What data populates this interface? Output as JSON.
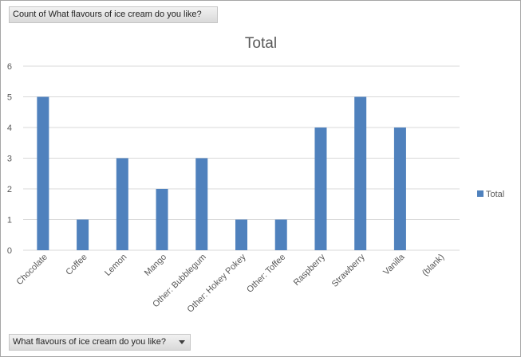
{
  "pivot": {
    "value_field": "Count of What flavours of ice cream do you like?",
    "axis_field": "What flavours of ice cream do you like?"
  },
  "colors": {
    "bar": "#4f81bd",
    "grid": "#d9d9d9",
    "text": "#595959"
  },
  "chart_data": {
    "type": "bar",
    "title": "Total",
    "categories": [
      "Chocolate",
      "Coffee",
      "Lemon",
      "Mango",
      "Other: Bubblegum",
      "Other: Hokey Pokey",
      "Other: Toffee",
      "Raspberry",
      "Strawberry",
      "Vanilla",
      "(blank)"
    ],
    "series": [
      {
        "name": "Total",
        "values": [
          5,
          1,
          3,
          2,
          3,
          1,
          1,
          4,
          5,
          4,
          0
        ]
      }
    ],
    "ylim": [
      0,
      6
    ],
    "yticks": [
      0,
      1,
      2,
      3,
      4,
      5,
      6
    ],
    "grid": true,
    "legend": "right"
  }
}
